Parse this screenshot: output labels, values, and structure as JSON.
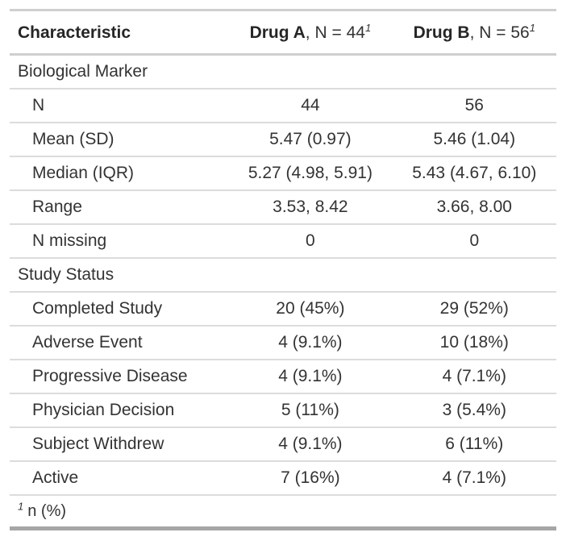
{
  "colors": {
    "text": "#333333",
    "header_text": "#262626",
    "row_separator": "#dcdcdc",
    "outer_border_top": "#cfcfcf",
    "outer_border_bottom": "#a6a6a6",
    "background": "#ffffff"
  },
  "chart_data": {
    "type": "table",
    "header": {
      "characteristic": "Characteristic",
      "columns": [
        {
          "drug": "Drug A",
          "n_label": ", N = 44",
          "footnote_mark": "1"
        },
        {
          "drug": "Drug B",
          "n_label": ", N = 56",
          "footnote_mark": "1"
        }
      ]
    },
    "rows": [
      {
        "type": "group",
        "label": "Biological Marker",
        "drug_a": "",
        "drug_b": ""
      },
      {
        "type": "data",
        "label": "N",
        "drug_a": "44",
        "drug_b": "56"
      },
      {
        "type": "data",
        "label": "Mean (SD)",
        "drug_a": "5.47 (0.97)",
        "drug_b": "5.46 (1.04)"
      },
      {
        "type": "data",
        "label": "Median (IQR)",
        "drug_a": "5.27 (4.98, 5.91)",
        "drug_b": "5.43 (4.67, 6.10)"
      },
      {
        "type": "data",
        "label": "Range",
        "drug_a": "3.53, 8.42",
        "drug_b": "3.66, 8.00"
      },
      {
        "type": "data",
        "label": "N missing",
        "drug_a": "0",
        "drug_b": "0"
      },
      {
        "type": "group",
        "label": "Study Status",
        "drug_a": "",
        "drug_b": ""
      },
      {
        "type": "data",
        "label": "Completed Study",
        "drug_a": "20 (45%)",
        "drug_b": "29 (52%)"
      },
      {
        "type": "data",
        "label": "Adverse Event",
        "drug_a": "4 (9.1%)",
        "drug_b": "10 (18%)"
      },
      {
        "type": "data",
        "label": "Progressive Disease",
        "drug_a": "4 (9.1%)",
        "drug_b": "4 (7.1%)"
      },
      {
        "type": "data",
        "label": "Physician Decision",
        "drug_a": "5 (11%)",
        "drug_b": "3 (5.4%)"
      },
      {
        "type": "data",
        "label": "Subject Withdrew",
        "drug_a": "4 (9.1%)",
        "drug_b": "6 (11%)"
      },
      {
        "type": "data",
        "label": "Active",
        "drug_a": "7 (16%)",
        "drug_b": "4 (7.1%)"
      }
    ],
    "footnote": {
      "mark": "1",
      "text": "n (%)"
    }
  }
}
